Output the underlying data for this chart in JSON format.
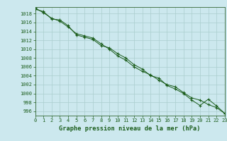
{
  "title": "Graphe pression niveau de la mer (hPa)",
  "background_color": "#cce8ee",
  "grid_color": "#aacece",
  "line_color": "#1a5c1a",
  "spine_color": "#336633",
  "x_values": [
    0,
    1,
    2,
    3,
    4,
    5,
    6,
    7,
    8,
    9,
    10,
    11,
    12,
    13,
    14,
    15,
    16,
    17,
    18,
    19,
    20,
    21,
    22,
    23
  ],
  "y_values1": [
    1019.3,
    1018.2,
    1017.0,
    1016.3,
    1015.0,
    1013.5,
    1013.0,
    1012.5,
    1011.2,
    1010.0,
    1008.5,
    1007.5,
    1006.0,
    1005.0,
    1004.2,
    1003.0,
    1002.0,
    1001.5,
    1000.2,
    999.0,
    998.5,
    997.5,
    996.8,
    995.5
  ],
  "y_values2": [
    1019.0,
    1018.5,
    1016.8,
    1016.6,
    1015.3,
    1013.2,
    1012.7,
    1012.2,
    1010.8,
    1010.3,
    1009.0,
    1008.0,
    1006.5,
    1005.5,
    1004.0,
    1003.5,
    1001.8,
    1001.0,
    1000.0,
    998.5,
    997.3,
    998.7,
    997.2,
    995.5
  ],
  "ylim": [
    995,
    1019.5
  ],
  "xlim": [
    0,
    23
  ],
  "yticks": [
    996,
    998,
    1000,
    1002,
    1004,
    1006,
    1008,
    1010,
    1012,
    1014,
    1016,
    1018
  ],
  "xticks": [
    0,
    1,
    2,
    3,
    4,
    5,
    6,
    7,
    8,
    9,
    10,
    11,
    12,
    13,
    14,
    15,
    16,
    17,
    18,
    19,
    20,
    21,
    22,
    23
  ],
  "tick_fontsize": 5.0,
  "title_fontsize": 6.2,
  "marker": "+",
  "marker_size": 3.5,
  "line_width": 0.7,
  "marker_edge_width": 0.8
}
